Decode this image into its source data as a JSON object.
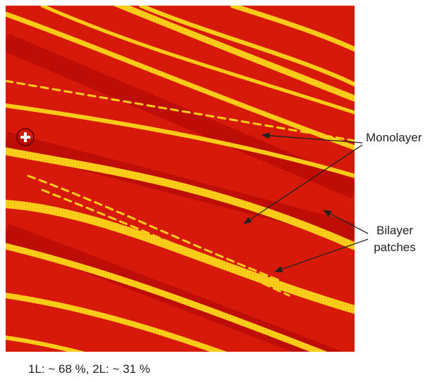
{
  "labels": {
    "monolayer": "Monolayer",
    "bilayer": [
      "Bilayer",
      "patches"
    ]
  },
  "caption": "1L: ~ 68 %, 2L: ~ 31 %"
}
